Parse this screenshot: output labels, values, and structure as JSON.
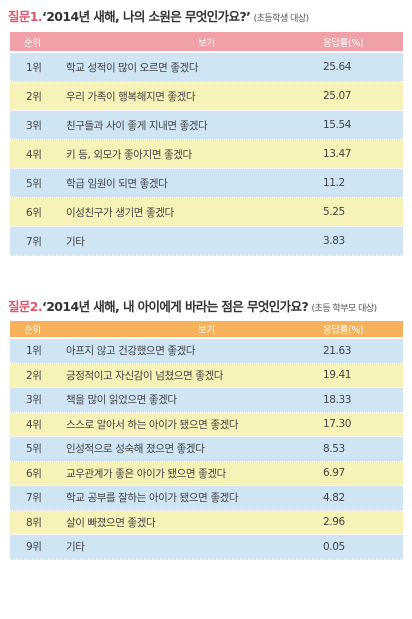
{
  "q1": {
    "label": "질문1.",
    "text": "‘2014년 새해, 나의 소원은 무엇인가요?’",
    "target": "(초등학생 대상)",
    "headers": {
      "rank": "순위",
      "item": "보기",
      "pct": "응답률(%)"
    },
    "rows": [
      {
        "rank": "1위",
        "item": "학교 성적이 많이 오르면 좋겠다",
        "pct": "25.64"
      },
      {
        "rank": "2위",
        "item": "우리 가족이 행복해지면 좋겠다",
        "pct": "25.07"
      },
      {
        "rank": "3위",
        "item": "친구들과 사이 좋게 지내면 좋겠다",
        "pct": "15.54"
      },
      {
        "rank": "4위",
        "item": "키 등, 외모가 좋아지면 좋겠다",
        "pct": "13.47"
      },
      {
        "rank": "5위",
        "item": "학급 임원이 되면 좋겠다",
        "pct": "11.2"
      },
      {
        "rank": "6위",
        "item": "이성친구가 생기면 좋겠다",
        "pct": "5.25"
      },
      {
        "rank": "7위",
        "item": "기타",
        "pct": "3.83"
      }
    ]
  },
  "q2": {
    "label": "질문2.",
    "text": "‘2014년 새해, 내 아이에게 바라는 점은 무엇인가요?",
    "target": "(초등 학부모 대상)",
    "headers": {
      "rank": "순위",
      "item": "보기",
      "pct": "응답률(%)"
    },
    "rows": [
      {
        "rank": "1위",
        "item": "아프지 않고 건강했으면 좋겠다",
        "pct": "21.63"
      },
      {
        "rank": "2위",
        "item": "긍정적이고 자신감이 넘쳤으면 좋겠다",
        "pct": "19.41"
      },
      {
        "rank": "3위",
        "item": "책을 많이 읽었으면 좋겠다",
        "pct": "18.33"
      },
      {
        "rank": "4위",
        "item": "스스로 알아서 하는 아이가 됐으면 좋겠다",
        "pct": "17.30"
      },
      {
        "rank": "5위",
        "item": "인성적으로 성숙해 졌으면 좋겠다",
        "pct": "8.53"
      },
      {
        "rank": "6위",
        "item": "교우관계가 좋은 아이가 됐으면 좋겠다",
        "pct": "6.97"
      },
      {
        "rank": "7위",
        "item": "학교 공부를 잘하는 아이가 됐으면 좋겠다",
        "pct": "4.82"
      },
      {
        "rank": "8위",
        "item": "살이 빠졌으면 좋겠다",
        "pct": "2.96"
      },
      {
        "rank": "9위",
        "item": "기타",
        "pct": "0.05"
      }
    ]
  },
  "colors": {
    "q1_header": "#f0a0a6",
    "q2_header": "#f6b15a",
    "row_blue": "#cfe5f4",
    "row_yellow": "#f7f2b8",
    "label_pink": "#e0556e"
  }
}
